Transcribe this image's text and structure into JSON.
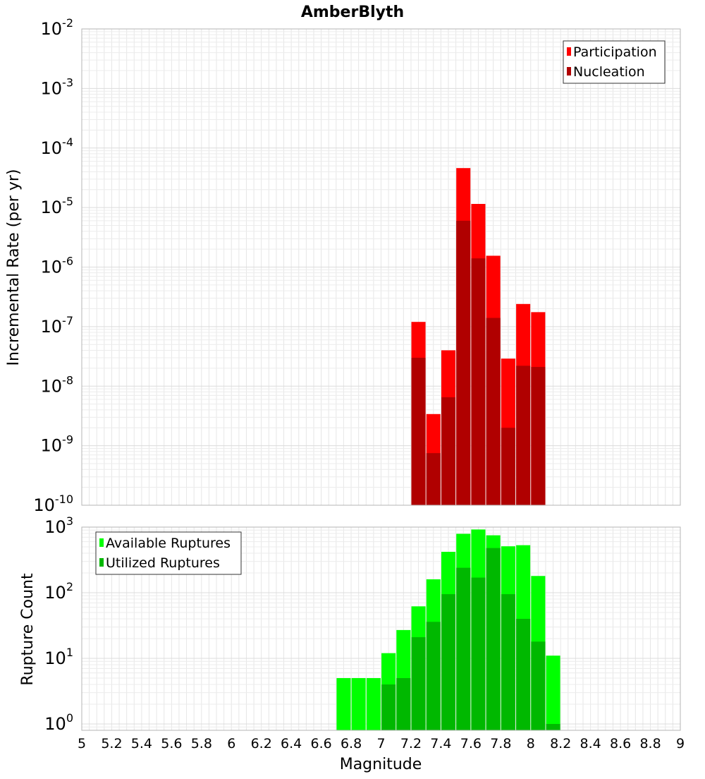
{
  "title": "AmberBlyth",
  "chart_data": [
    {
      "type": "bar",
      "title": "AmberBlyth",
      "xlabel": "",
      "ylabel": "Incremental Rate (per yr)",
      "yscale": "log",
      "ylim": [
        1e-10,
        0.01
      ],
      "xlim": [
        5,
        9
      ],
      "grid": true,
      "legend_position": "top-right",
      "y_ticks": [
        {
          "base": "10",
          "exp": "-10"
        },
        {
          "base": "10",
          "exp": "-9"
        },
        {
          "base": "10",
          "exp": "-8"
        },
        {
          "base": "10",
          "exp": "-7"
        },
        {
          "base": "10",
          "exp": "-6"
        },
        {
          "base": "10",
          "exp": "-5"
        },
        {
          "base": "10",
          "exp": "-4"
        },
        {
          "base": "10",
          "exp": "-3"
        },
        {
          "base": "10",
          "exp": "-2"
        }
      ],
      "x": [
        7.25,
        7.35,
        7.45,
        7.55,
        7.65,
        7.75,
        7.85,
        7.95,
        8.05
      ],
      "series": [
        {
          "name": "Participation",
          "color": "#ff0000",
          "values": [
            1.2e-07,
            3.4e-09,
            4e-08,
            4.6e-05,
            1.15e-05,
            1.55e-06,
            2.9e-08,
            2.4e-07,
            1.75e-07
          ]
        },
        {
          "name": "Nucleation",
          "color": "#b00000",
          "values": [
            3e-08,
            7.5e-10,
            6.5e-09,
            6e-06,
            1.4e-06,
            1.4e-07,
            2e-09,
            2.2e-08,
            2.1e-08
          ]
        }
      ]
    },
    {
      "type": "bar",
      "title": "",
      "xlabel": "Magnitude",
      "ylabel": "Rupture Count",
      "yscale": "log",
      "ylim": [
        0.8,
        1000
      ],
      "xlim": [
        5,
        9
      ],
      "grid": true,
      "legend_position": "top-left",
      "y_ticks": [
        {
          "base": "10",
          "exp": "0"
        },
        {
          "base": "10",
          "exp": "1"
        },
        {
          "base": "10",
          "exp": "2"
        },
        {
          "base": "10",
          "exp": "3"
        }
      ],
      "x_ticks": [
        "5",
        "5.2",
        "5.4",
        "5.6",
        "5.8",
        "6",
        "6.2",
        "6.4",
        "6.6",
        "6.8",
        "7",
        "7.2",
        "7.4",
        "7.6",
        "7.8",
        "8",
        "8.2",
        "8.4",
        "8.6",
        "8.8",
        "9"
      ],
      "x": [
        6.75,
        6.85,
        6.95,
        7.05,
        7.15,
        7.25,
        7.35,
        7.45,
        7.55,
        7.65,
        7.75,
        7.85,
        7.95,
        8.05,
        8.15
      ],
      "series": [
        {
          "name": "Available Ruptures",
          "color": "#00ff00",
          "values": [
            5,
            5,
            5,
            12,
            27,
            62,
            160,
            420,
            790,
            920,
            750,
            510,
            530,
            180,
            11
          ]
        },
        {
          "name": "Utilized Ruptures",
          "color": "#00b800",
          "values": [
            0,
            0,
            0,
            4,
            5,
            21,
            36,
            95,
            240,
            170,
            480,
            95,
            40,
            18,
            1
          ]
        }
      ]
    }
  ]
}
